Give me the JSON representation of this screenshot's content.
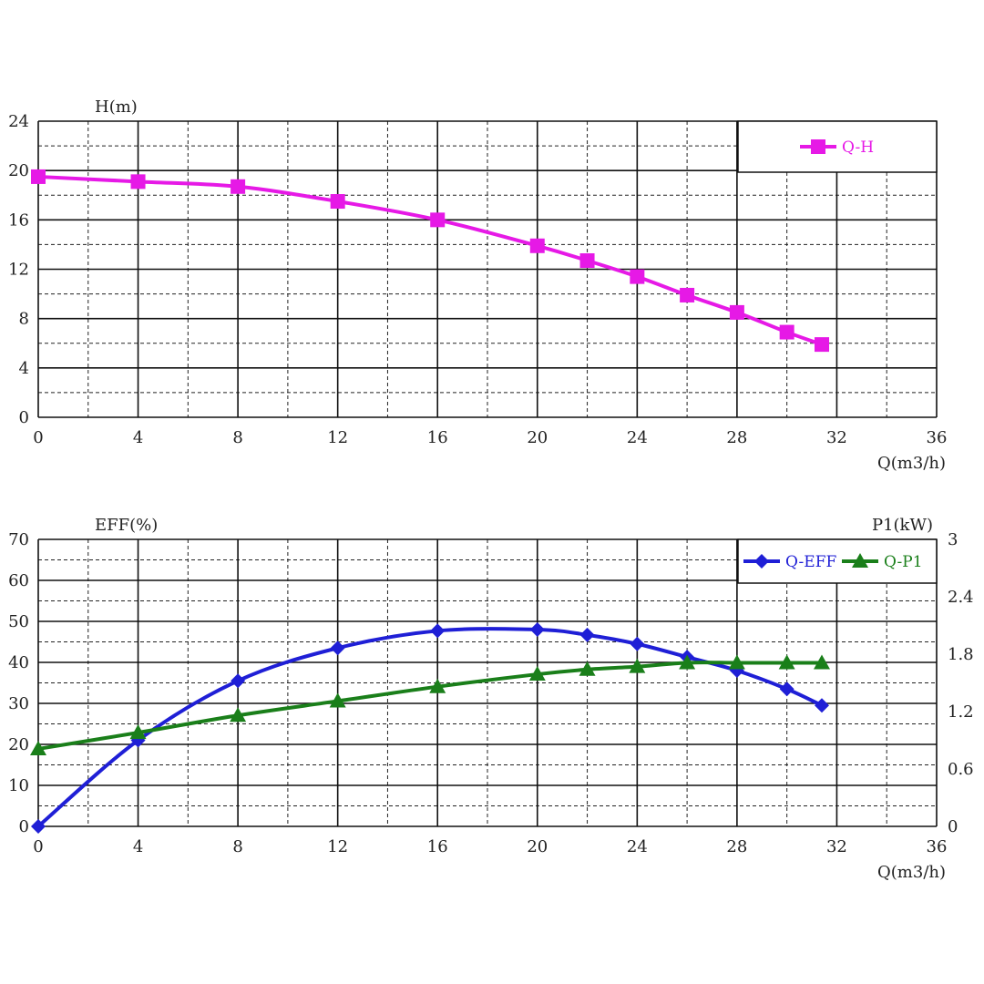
{
  "chart_data": [
    {
      "type": "line",
      "title": "",
      "ylabel": "H(m)",
      "xlabel": "Q(m3/h)",
      "xlim": [
        0,
        36
      ],
      "ylim": [
        0,
        24
      ],
      "x_ticks": [
        "0",
        "4",
        "8",
        "12",
        "16",
        "20",
        "24",
        "28",
        "32",
        "36"
      ],
      "y_ticks": [
        "0",
        "4",
        "8",
        "12",
        "16",
        "20",
        "24"
      ],
      "grid": true,
      "legend_position": "top-right",
      "series": [
        {
          "name": "Q-H",
          "color": "#e619e6",
          "marker": "square",
          "x": [
            0,
            4,
            8,
            12,
            16,
            20,
            22,
            24,
            26,
            28,
            30,
            31.4
          ],
          "y": [
            19.5,
            19.1,
            18.7,
            17.5,
            16.0,
            13.9,
            12.7,
            11.4,
            9.9,
            8.5,
            6.9,
            5.9
          ]
        }
      ]
    },
    {
      "type": "line",
      "title": "",
      "ylabel": "EFF(%)",
      "y2label": "P1(kW)",
      "xlabel": "Q(m3/h)",
      "xlim": [
        0,
        36
      ],
      "ylim": [
        0,
        70
      ],
      "y2lim": [
        0,
        3
      ],
      "x_ticks": [
        "0",
        "4",
        "8",
        "12",
        "16",
        "20",
        "24",
        "28",
        "32",
        "36"
      ],
      "y_ticks": [
        "0",
        "10",
        "20",
        "30",
        "40",
        "50",
        "60",
        "70"
      ],
      "y2_ticks": [
        "0",
        "0.6",
        "1.2",
        "1.8",
        "2.4",
        "3"
      ],
      "grid": true,
      "legend_position": "top-right",
      "series": [
        {
          "name": "Q-EFF",
          "axis": "left",
          "color": "#1f1fd6",
          "marker": "diamond",
          "x": [
            0,
            4,
            8,
            12,
            16,
            20,
            22,
            24,
            26,
            28,
            30,
            31.4
          ],
          "y": [
            0,
            21.0,
            35.5,
            43.5,
            47.7,
            48.0,
            46.7,
            44.5,
            41.3,
            38.0,
            33.5,
            29.5
          ]
        },
        {
          "name": "Q-P1",
          "axis": "right",
          "color": "#1a7f1a",
          "marker": "triangle",
          "x": [
            0,
            4,
            8,
            12,
            16,
            20,
            22,
            24,
            26,
            28,
            30,
            31.4
          ],
          "y": [
            0.81,
            0.98,
            1.16,
            1.31,
            1.46,
            1.59,
            1.64,
            1.67,
            1.71,
            1.71,
            1.71,
            1.71
          ]
        }
      ]
    }
  ]
}
